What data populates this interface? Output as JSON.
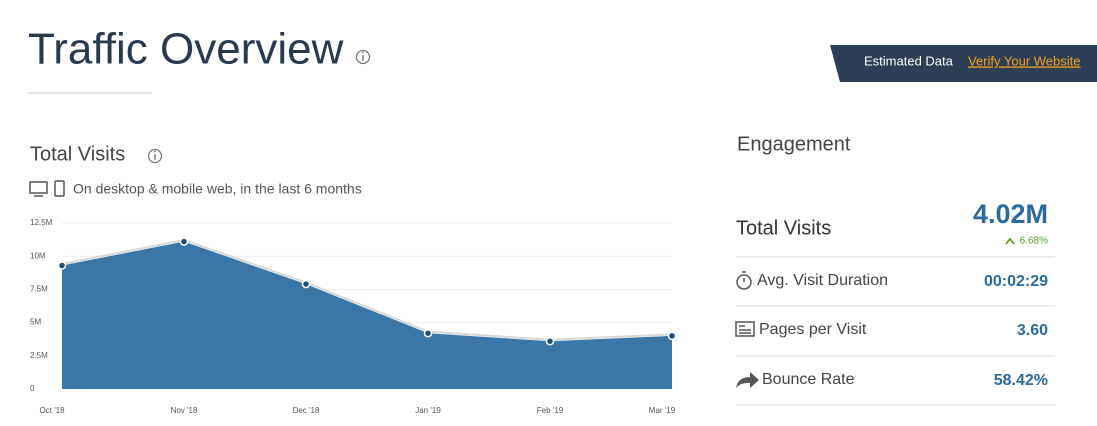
{
  "header": {
    "title": "Traffic Overview",
    "badge": "Estimated Data",
    "link": "Verify Your Website"
  },
  "chart_data": {
    "type": "area",
    "title": "Total Visits",
    "subtitle": "On desktop & mobile web, in the last 6 months",
    "categories": [
      "Oct '18",
      "Nov '18",
      "Dec '18",
      "Jan '19",
      "Feb '19",
      "Mar '19"
    ],
    "values": [
      9300000,
      11100000,
      7900000,
      4200000,
      3600000,
      4000000
    ],
    "color": "#3a77a6",
    "ylim": [
      0,
      12500000
    ],
    "yticks": [
      0,
      {
        "value": 2500000,
        "label": "2.5M"
      },
      {
        "value": 5000000,
        "label": "5M"
      },
      {
        "value": 7500000,
        "label": "7.5M"
      },
      {
        "value": 10000000,
        "label": "10M"
      },
      {
        "value": 12500000,
        "label": "12.5M"
      }
    ],
    "grid": true
  },
  "engagement": {
    "title": "Engagement",
    "total_visits": {
      "label": "Total Visits",
      "value": "4.02M",
      "change": "6.68%"
    },
    "rows": [
      {
        "label": "Avg. Visit Duration",
        "value": "00:02:29"
      },
      {
        "label": "Pages per Visit",
        "value": "3.60"
      },
      {
        "label": "Bounce Rate",
        "value": "58.42%"
      }
    ]
  }
}
